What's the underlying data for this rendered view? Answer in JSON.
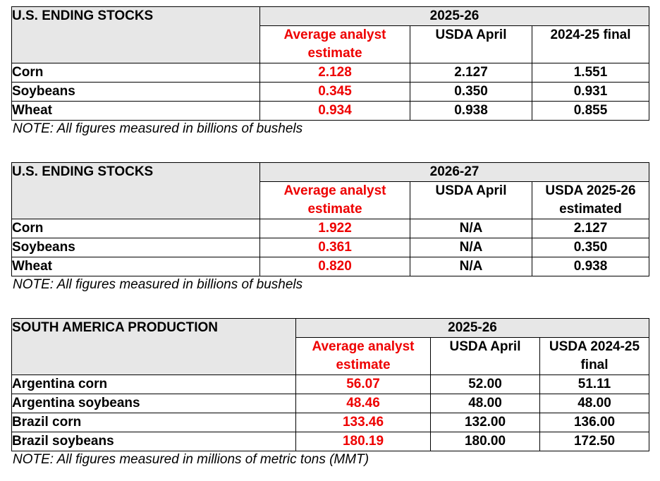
{
  "tables": [
    {
      "title": "U.S. ENDING STOCKS",
      "year": "2025-26",
      "headers": [
        "Average analyst estimate",
        "USDA April",
        "2024-25 final"
      ],
      "rows": [
        {
          "label": "Corn",
          "values": [
            "2.128",
            "2.127",
            "1.551"
          ]
        },
        {
          "label": "Soybeans",
          "values": [
            "0.345",
            "0.350",
            "0.931"
          ]
        },
        {
          "label": "Wheat",
          "values": [
            "0.934",
            "0.938",
            "0.855"
          ]
        }
      ],
      "note": "NOTE: All figures measured in billions of bushels"
    },
    {
      "title": "U.S. ENDING STOCKS",
      "year": "2026-27",
      "headers": [
        "Average analyst estimate",
        "USDA April",
        "USDA 2025-26 estimated"
      ],
      "rows": [
        {
          "label": "Corn",
          "values": [
            "1.922",
            "N/A",
            "2.127"
          ]
        },
        {
          "label": "Soybeans",
          "values": [
            "0.361",
            "N/A",
            "0.350"
          ]
        },
        {
          "label": "Wheat",
          "values": [
            "0.820",
            "N/A",
            "0.938"
          ]
        }
      ],
      "note": "NOTE: All figures measured in billions of bushels"
    },
    {
      "title": "SOUTH AMERICA PRODUCTION",
      "year": "2025-26",
      "headers": [
        "Average analyst estimate",
        "USDA April",
        "USDA 2024-25 final"
      ],
      "rows": [
        {
          "label": "Argentina corn",
          "values": [
            "56.07",
            "52.00",
            "51.11"
          ]
        },
        {
          "label": "Argentina soybeans",
          "values": [
            "48.46",
            "48.00",
            "48.00"
          ]
        },
        {
          "label": "Brazil corn",
          "values": [
            "133.46",
            "132.00",
            "136.00"
          ]
        },
        {
          "label": "Brazil soybeans",
          "values": [
            "180.19",
            "180.00",
            "172.50"
          ]
        }
      ],
      "note": "NOTE: All figures measured in millions of metric tons (MMT)"
    }
  ],
  "colors": {
    "estimate": "#ee0000",
    "header_bg": "#e7e7e7"
  }
}
